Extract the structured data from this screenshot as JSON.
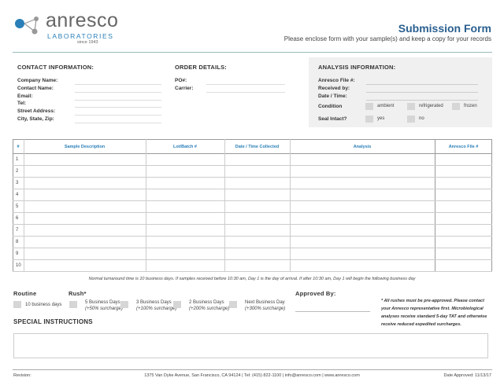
{
  "header": {
    "logo_name": "anresco",
    "logo_sub": "LABORATORIES",
    "logo_since": "since 1943",
    "title": "Submission Form",
    "subtitle": "Please enclose form with your sample(s) and keep a copy for your records"
  },
  "contact": {
    "heading": "CONTACT INFORMATION:",
    "fields": [
      "Company Name:",
      "Contact Name:",
      "Email:",
      "Tel:",
      "Street Address:",
      "City, State, Zip:"
    ]
  },
  "order": {
    "heading": "ORDER DETAILS:",
    "fields": [
      "PO#:",
      "Carrier:"
    ]
  },
  "analysis_info": {
    "heading": "ANALYSIS INFORMATION:",
    "fields": [
      "Anresco File #:",
      "Received by:",
      "Date / Time:"
    ],
    "condition_label": "Condition",
    "condition_options": [
      "ambient",
      "refrigerated",
      "frozen"
    ],
    "seal_label": "Seal Intact?",
    "seal_options": [
      "yes",
      "no"
    ]
  },
  "table": {
    "headers": [
      "#",
      "Sample Description",
      "Lot/Batch #",
      "Date / Time Collected",
      "Analysis",
      "Anresco File #"
    ],
    "rows": [
      "1",
      "2",
      "3",
      "4",
      "5",
      "6",
      "7",
      "8",
      "9",
      "10"
    ]
  },
  "note": "Normal turnaround time is 10 business days. If samples received before 10:30 am, Day 1 is the day of arrival. If after 10:30 am, Day 1 will begin the following business day",
  "routine": {
    "label": "Routine",
    "option": "10 business days"
  },
  "rush": {
    "label": "Rush*",
    "options": [
      {
        "label": "5 Business Days",
        "sub": "(+50% surcharge)"
      },
      {
        "label": "3 Business Days",
        "sub": "(+100% surcharge)"
      },
      {
        "label": "2 Business Days",
        "sub": "(+200% surcharge)"
      },
      {
        "label": "Next Business Day",
        "sub": "(+300% surcharge)"
      }
    ]
  },
  "approved_by": "Approved By:",
  "rush_note": "* All rushes must be pre-approved. Please contact your Anresco representative first. Microbiological analyses receive standard 5-day TAT and otherwise receive reduced expedited surcharges.",
  "special_instructions": "SPECIAL INSTRUCTIONS",
  "footer": {
    "revision": "Revision:",
    "address": "1375 Van Dyke Avenue, San Francisco, CA 94124 | Tel: (415) 822-1100 | info@anresco.com | www.anresco.com",
    "date_approved": "Date Approved: 11/13/17"
  }
}
